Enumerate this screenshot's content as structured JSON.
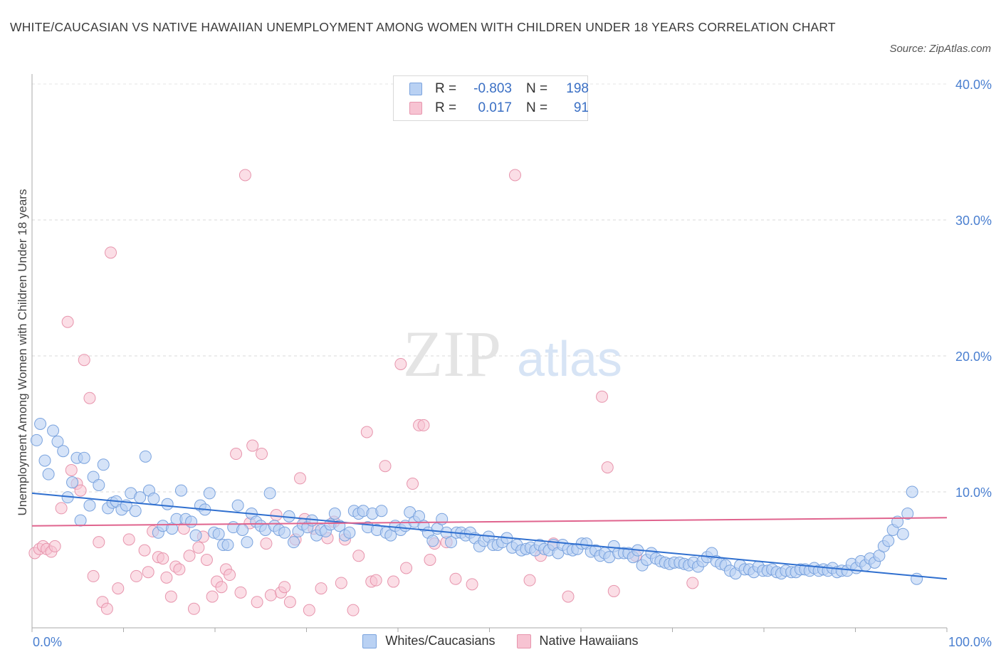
{
  "title": "WHITE/CAUCASIAN VS NATIVE HAWAIIAN UNEMPLOYMENT AMONG WOMEN WITH CHILDREN UNDER 18 YEARS CORRELATION CHART",
  "source": "Source: ZipAtlas.com",
  "watermark": {
    "zip": "ZIP",
    "atlas": "atlas"
  },
  "colors": {
    "blue_fill": "#b9d1f3",
    "blue_stroke": "#7aa3de",
    "blue_line": "#2f6fcf",
    "pink_fill": "#f7c3d2",
    "pink_stroke": "#e795ad",
    "pink_line": "#e0648e",
    "grid": "#d9d9d9",
    "axis_text": "#4a7fd0"
  },
  "legend_box": {
    "rows": [
      {
        "r_label": "R =",
        "r_value": "-0.803",
        "n_label": "N =",
        "n_value": "198"
      },
      {
        "r_label": "R =",
        "r_value": "0.017",
        "n_label": "N =",
        "n_value": "91"
      }
    ]
  },
  "bottom_legend": {
    "blue": "Whites/Caucasians",
    "pink": "Native Hawaiians"
  },
  "chart_data": {
    "type": "scatter",
    "xlabel": "",
    "ylabel": "Unemployment Among Women with Children Under 18 years",
    "xlim": [
      0,
      100
    ],
    "ylim": [
      0,
      40
    ],
    "y_ticks": [
      10,
      20,
      30,
      40
    ],
    "y_tick_labels": [
      "10.0%",
      "20.0%",
      "30.0%",
      "40.0%"
    ],
    "x_tick_labels": [
      "0.0%",
      "100.0%"
    ],
    "grid": "horizontal dashed",
    "legend": "top-center",
    "series": [
      {
        "name": "Whites/Caucasians",
        "trend": [
          [
            0,
            9.9
          ],
          [
            100,
            3.6
          ]
        ],
        "points": [
          [
            0.5,
            13.8
          ],
          [
            0.9,
            15.0
          ],
          [
            1.4,
            12.3
          ],
          [
            1.8,
            11.3
          ],
          [
            2.3,
            14.5
          ],
          [
            2.8,
            13.7
          ],
          [
            3.4,
            13.0
          ],
          [
            3.9,
            9.6
          ],
          [
            4.4,
            10.7
          ],
          [
            4.9,
            12.5
          ],
          [
            5.3,
            7.9
          ],
          [
            5.7,
            12.5
          ],
          [
            6.3,
            9.0
          ],
          [
            6.7,
            11.1
          ],
          [
            7.3,
            10.5
          ],
          [
            7.8,
            12.0
          ],
          [
            8.3,
            8.8
          ],
          [
            8.8,
            9.2
          ],
          [
            9.2,
            9.3
          ],
          [
            9.8,
            8.7
          ],
          [
            10.3,
            9.0
          ],
          [
            10.8,
            9.9
          ],
          [
            11.3,
            8.6
          ],
          [
            11.8,
            9.6
          ],
          [
            12.4,
            12.6
          ],
          [
            12.8,
            10.1
          ],
          [
            13.3,
            9.5
          ],
          [
            13.8,
            7.0
          ],
          [
            14.3,
            7.5
          ],
          [
            14.8,
            9.1
          ],
          [
            15.3,
            7.3
          ],
          [
            15.8,
            8.0
          ],
          [
            16.3,
            10.1
          ],
          [
            16.8,
            8.0
          ],
          [
            17.4,
            7.8
          ],
          [
            17.9,
            6.8
          ],
          [
            18.4,
            9.0
          ],
          [
            18.9,
            8.7
          ],
          [
            19.4,
            9.9
          ],
          [
            19.9,
            7.0
          ],
          [
            20.4,
            6.9
          ],
          [
            20.9,
            6.1
          ],
          [
            21.4,
            6.1
          ],
          [
            22.0,
            7.4
          ],
          [
            22.5,
            9.0
          ],
          [
            23.0,
            7.2
          ],
          [
            23.5,
            6.3
          ],
          [
            24.0,
            8.4
          ],
          [
            24.5,
            7.8
          ],
          [
            25.0,
            7.5
          ],
          [
            25.5,
            7.2
          ],
          [
            26.0,
            9.9
          ],
          [
            26.5,
            7.5
          ],
          [
            27.0,
            7.2
          ],
          [
            27.6,
            7.0
          ],
          [
            28.1,
            8.2
          ],
          [
            28.6,
            6.3
          ],
          [
            29.1,
            7.1
          ],
          [
            29.6,
            7.6
          ],
          [
            30.1,
            7.4
          ],
          [
            30.6,
            7.9
          ],
          [
            31.1,
            6.8
          ],
          [
            31.6,
            7.2
          ],
          [
            32.1,
            7.1
          ],
          [
            32.6,
            7.6
          ],
          [
            33.1,
            8.4
          ],
          [
            33.6,
            7.5
          ],
          [
            34.2,
            6.8
          ],
          [
            34.7,
            7.0
          ],
          [
            35.2,
            8.6
          ],
          [
            35.7,
            8.4
          ],
          [
            36.2,
            8.6
          ],
          [
            36.7,
            7.4
          ],
          [
            37.2,
            8.4
          ],
          [
            37.7,
            7.2
          ],
          [
            38.2,
            8.6
          ],
          [
            38.7,
            7.0
          ],
          [
            39.2,
            6.8
          ],
          [
            39.7,
            7.5
          ],
          [
            40.3,
            7.2
          ],
          [
            40.8,
            7.5
          ],
          [
            41.3,
            8.5
          ],
          [
            41.8,
            7.8
          ],
          [
            42.3,
            8.2
          ],
          [
            42.8,
            7.5
          ],
          [
            43.3,
            7.0
          ],
          [
            43.8,
            6.4
          ],
          [
            44.3,
            7.3
          ],
          [
            44.8,
            8.0
          ],
          [
            45.3,
            7.0
          ],
          [
            45.8,
            6.3
          ],
          [
            46.4,
            7.0
          ],
          [
            46.9,
            7.0
          ],
          [
            47.4,
            6.8
          ],
          [
            47.9,
            7.0
          ],
          [
            48.4,
            6.6
          ],
          [
            48.9,
            6.0
          ],
          [
            49.4,
            6.4
          ],
          [
            49.9,
            6.7
          ],
          [
            50.4,
            6.1
          ],
          [
            50.9,
            6.1
          ],
          [
            51.4,
            6.3
          ],
          [
            51.9,
            6.6
          ],
          [
            52.5,
            5.9
          ],
          [
            53.0,
            6.1
          ],
          [
            53.5,
            5.7
          ],
          [
            54.0,
            5.8
          ],
          [
            54.5,
            5.9
          ],
          [
            55.0,
            5.7
          ],
          [
            55.5,
            6.1
          ],
          [
            56.0,
            5.8
          ],
          [
            56.5,
            5.7
          ],
          [
            57.0,
            6.1
          ],
          [
            57.5,
            5.5
          ],
          [
            58.0,
            6.1
          ],
          [
            58.6,
            5.8
          ],
          [
            59.1,
            5.7
          ],
          [
            59.6,
            5.8
          ],
          [
            60.1,
            6.2
          ],
          [
            60.6,
            6.2
          ],
          [
            61.1,
            5.6
          ],
          [
            61.6,
            5.7
          ],
          [
            62.1,
            5.3
          ],
          [
            62.6,
            5.5
          ],
          [
            63.1,
            5.2
          ],
          [
            63.6,
            6.0
          ],
          [
            64.1,
            5.5
          ],
          [
            64.7,
            5.5
          ],
          [
            65.2,
            5.5
          ],
          [
            65.7,
            5.2
          ],
          [
            66.2,
            5.7
          ],
          [
            66.7,
            4.6
          ],
          [
            67.2,
            5.0
          ],
          [
            67.7,
            5.5
          ],
          [
            68.2,
            5.1
          ],
          [
            68.7,
            4.9
          ],
          [
            69.2,
            4.8
          ],
          [
            69.7,
            4.7
          ],
          [
            70.2,
            4.8
          ],
          [
            70.8,
            4.8
          ],
          [
            71.3,
            4.7
          ],
          [
            71.8,
            4.6
          ],
          [
            72.3,
            4.8
          ],
          [
            72.8,
            4.5
          ],
          [
            73.3,
            4.9
          ],
          [
            73.8,
            5.2
          ],
          [
            74.3,
            5.5
          ],
          [
            74.8,
            4.9
          ],
          [
            75.3,
            4.7
          ],
          [
            75.8,
            4.6
          ],
          [
            76.3,
            4.2
          ],
          [
            76.9,
            4.0
          ],
          [
            77.4,
            4.6
          ],
          [
            77.9,
            4.3
          ],
          [
            78.4,
            4.3
          ],
          [
            78.9,
            4.1
          ],
          [
            79.4,
            4.5
          ],
          [
            79.9,
            4.2
          ],
          [
            80.4,
            4.2
          ],
          [
            80.9,
            4.3
          ],
          [
            81.4,
            4.1
          ],
          [
            81.9,
            4.0
          ],
          [
            82.4,
            4.2
          ],
          [
            83.0,
            4.1
          ],
          [
            83.5,
            4.1
          ],
          [
            84.0,
            4.3
          ],
          [
            84.5,
            4.3
          ],
          [
            85.0,
            4.2
          ],
          [
            85.5,
            4.4
          ],
          [
            86.0,
            4.2
          ],
          [
            86.5,
            4.3
          ],
          [
            87.0,
            4.2
          ],
          [
            87.5,
            4.4
          ],
          [
            88.0,
            4.1
          ],
          [
            88.5,
            4.2
          ],
          [
            89.1,
            4.2
          ],
          [
            89.6,
            4.7
          ],
          [
            90.1,
            4.4
          ],
          [
            90.6,
            4.9
          ],
          [
            91.1,
            4.6
          ],
          [
            91.6,
            5.1
          ],
          [
            92.1,
            4.8
          ],
          [
            92.6,
            5.3
          ],
          [
            93.1,
            6.0
          ],
          [
            93.6,
            6.4
          ],
          [
            94.1,
            7.2
          ],
          [
            94.6,
            7.8
          ],
          [
            95.2,
            6.9
          ],
          [
            95.7,
            8.4
          ],
          [
            96.2,
            10.0
          ],
          [
            96.7,
            3.6
          ]
        ]
      },
      {
        "name": "Native Hawaiians",
        "trend": [
          [
            0,
            7.5
          ],
          [
            100,
            8.1
          ]
        ],
        "points": [
          [
            0.3,
            5.5
          ],
          [
            0.8,
            5.8
          ],
          [
            1.2,
            6.0
          ],
          [
            1.6,
            5.8
          ],
          [
            2.1,
            5.6
          ],
          [
            2.5,
            6.0
          ],
          [
            3.2,
            8.8
          ],
          [
            3.9,
            22.5
          ],
          [
            4.3,
            11.6
          ],
          [
            4.9,
            10.6
          ],
          [
            5.3,
            10.1
          ],
          [
            5.7,
            19.7
          ],
          [
            6.3,
            16.9
          ],
          [
            6.7,
            3.8
          ],
          [
            7.3,
            6.3
          ],
          [
            7.7,
            1.9
          ],
          [
            8.2,
            1.4
          ],
          [
            8.6,
            27.6
          ],
          [
            9.4,
            2.9
          ],
          [
            10.6,
            6.5
          ],
          [
            11.4,
            3.8
          ],
          [
            12.3,
            5.7
          ],
          [
            12.7,
            4.1
          ],
          [
            13.2,
            7.1
          ],
          [
            13.8,
            5.2
          ],
          [
            14.3,
            5.1
          ],
          [
            14.7,
            3.7
          ],
          [
            15.2,
            2.3
          ],
          [
            15.7,
            4.5
          ],
          [
            16.1,
            4.3
          ],
          [
            16.6,
            7.3
          ],
          [
            17.2,
            5.3
          ],
          [
            17.7,
            1.4
          ],
          [
            18.2,
            5.9
          ],
          [
            18.7,
            6.7
          ],
          [
            19.1,
            5.0
          ],
          [
            19.7,
            2.3
          ],
          [
            20.2,
            3.4
          ],
          [
            20.7,
            3.0
          ],
          [
            21.2,
            4.3
          ],
          [
            21.6,
            3.9
          ],
          [
            22.3,
            12.8
          ],
          [
            22.8,
            2.6
          ],
          [
            23.3,
            33.3
          ],
          [
            23.8,
            7.7
          ],
          [
            24.1,
            13.4
          ],
          [
            24.6,
            1.9
          ],
          [
            25.1,
            12.8
          ],
          [
            25.6,
            6.2
          ],
          [
            26.1,
            2.4
          ],
          [
            26.7,
            8.3
          ],
          [
            27.2,
            2.6
          ],
          [
            27.6,
            3.0
          ],
          [
            28.2,
            1.9
          ],
          [
            28.8,
            6.5
          ],
          [
            29.3,
            11.0
          ],
          [
            29.8,
            8.0
          ],
          [
            30.3,
            1.3
          ],
          [
            30.8,
            7.3
          ],
          [
            31.6,
            2.9
          ],
          [
            32.3,
            6.6
          ],
          [
            33.0,
            7.8
          ],
          [
            33.8,
            3.3
          ],
          [
            34.2,
            6.5
          ],
          [
            35.1,
            1.3
          ],
          [
            35.7,
            5.3
          ],
          [
            36.6,
            14.4
          ],
          [
            37.1,
            3.4
          ],
          [
            37.6,
            3.5
          ],
          [
            38.6,
            11.9
          ],
          [
            39.5,
            3.4
          ],
          [
            40.3,
            19.4
          ],
          [
            40.9,
            4.4
          ],
          [
            41.6,
            10.6
          ],
          [
            42.3,
            14.9
          ],
          [
            42.8,
            14.9
          ],
          [
            43.5,
            5.0
          ],
          [
            44.0,
            6.2
          ],
          [
            45.3,
            6.3
          ],
          [
            46.3,
            3.6
          ],
          [
            48.1,
            3.2
          ],
          [
            52.8,
            33.3
          ],
          [
            54.4,
            3.5
          ],
          [
            55.6,
            5.3
          ],
          [
            57.0,
            6.2
          ],
          [
            58.6,
            2.3
          ],
          [
            62.3,
            17.0
          ],
          [
            62.9,
            11.8
          ],
          [
            63.6,
            2.7
          ],
          [
            66.0,
            5.3
          ],
          [
            72.2,
            3.3
          ]
        ]
      }
    ]
  }
}
